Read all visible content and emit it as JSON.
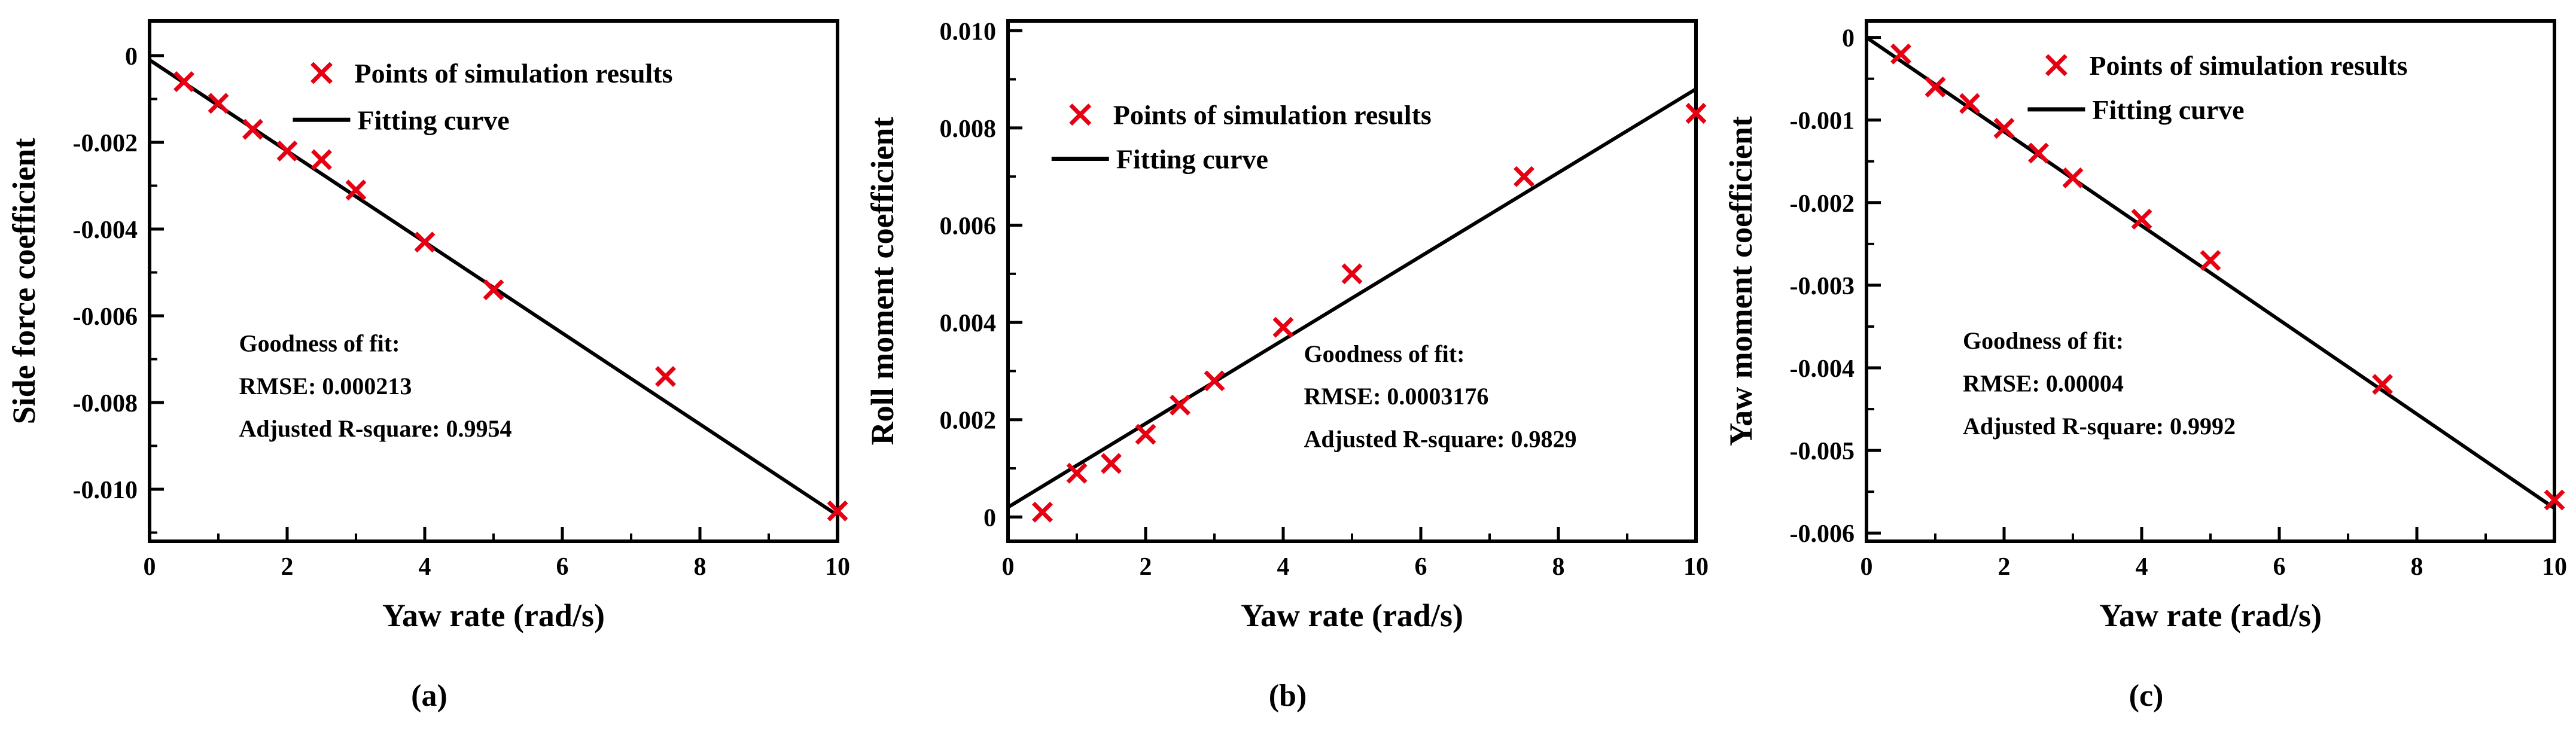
{
  "figure": {
    "background": "#ffffff",
    "marker_color": "#e60012",
    "line_color": "#000000",
    "captions": [
      "(a)",
      "(b)",
      "(c)"
    ]
  },
  "chart_data": [
    {
      "type": "scatter",
      "xlabel": "Yaw rate (rad/s)",
      "ylabel": "Side force coefficient",
      "xlim": [
        0,
        10
      ],
      "ylim": [
        -0.0112,
        0.0008
      ],
      "xticks": [
        0,
        2,
        4,
        6,
        8,
        10
      ],
      "xtick_labels": [
        "0",
        "2",
        "4",
        "6",
        "8",
        "10"
      ],
      "xminor": [
        1,
        3,
        5,
        7,
        9
      ],
      "yticks": [
        0,
        -0.002,
        -0.004,
        -0.006,
        -0.008,
        -0.01
      ],
      "ytick_labels": [
        "0",
        "-0.002",
        "-0.004",
        "-0.006",
        "-0.008",
        "-0.010"
      ],
      "yminor": [
        -0.001,
        -0.003,
        -0.005,
        -0.007,
        -0.009,
        -0.011
      ],
      "grid": false,
      "series": [
        {
          "name": "Points of simulation results",
          "kind": "scatter",
          "marker": "x",
          "color": "#e60012",
          "x": [
            0.5,
            1,
            1.5,
            2,
            2.5,
            3,
            4,
            5,
            7.5,
            10
          ],
          "y": [
            -0.0006,
            -0.0011,
            -0.0017,
            -0.0022,
            -0.0024,
            -0.0031,
            -0.0043,
            -0.0054,
            -0.0074,
            -0.0105
          ]
        },
        {
          "name": "Fitting curve",
          "kind": "line",
          "color": "#000000",
          "x": [
            0,
            10
          ],
          "y": [
            -0.0001,
            -0.0106
          ]
        }
      ],
      "legend": {
        "x": 0.25,
        "y": 0.1,
        "dy": 0.09
      },
      "annotation": {
        "x": 0.13,
        "y": 0.635,
        "dy": 0.082,
        "lines": [
          "Goodness of fit:",
          "RMSE: 0.000213",
          "Adjusted R-square: 0.9954"
        ]
      }
    },
    {
      "type": "scatter",
      "xlabel": "Yaw rate (rad/s)",
      "ylabel": "Roll moment coefficient",
      "xlim": [
        0,
        10
      ],
      "ylim": [
        -0.0005,
        0.0102
      ],
      "xticks": [
        0,
        2,
        4,
        6,
        8,
        10
      ],
      "xtick_labels": [
        "0",
        "2",
        "4",
        "6",
        "8",
        "10"
      ],
      "xminor": [
        1,
        3,
        5,
        7,
        9
      ],
      "yticks": [
        0,
        0.002,
        0.004,
        0.006,
        0.008,
        0.01
      ],
      "ytick_labels": [
        "0",
        "0.002",
        "0.004",
        "0.006",
        "0.008",
        "0.010"
      ],
      "yminor": [
        0.001,
        0.003,
        0.005,
        0.007,
        0.009
      ],
      "grid": false,
      "series": [
        {
          "name": "Points of simulation results",
          "kind": "scatter",
          "marker": "x",
          "color": "#e60012",
          "x": [
            0.5,
            1,
            1.5,
            2,
            2.5,
            3,
            4,
            5,
            7.5,
            10
          ],
          "y": [
            0.0001,
            0.0009,
            0.0011,
            0.0017,
            0.0023,
            0.0028,
            0.0039,
            0.005,
            0.007,
            0.0083
          ]
        },
        {
          "name": "Fitting curve",
          "kind": "line",
          "color": "#000000",
          "x": [
            0,
            10
          ],
          "y": [
            0.0002,
            0.0088
          ]
        }
      ],
      "legend": {
        "x": 0.105,
        "y": 0.18,
        "dy": 0.085
      },
      "annotation": {
        "x": 0.43,
        "y": 0.655,
        "dy": 0.082,
        "lines": [
          "Goodness of fit:",
          "RMSE: 0.0003176",
          "Adjusted R-square: 0.9829"
        ]
      }
    },
    {
      "type": "scatter",
      "xlabel": "Yaw rate (rad/s)",
      "ylabel": "Yaw moment coefficient",
      "xlim": [
        0,
        10
      ],
      "ylim": [
        -0.0061,
        0.0002
      ],
      "xticks": [
        0,
        2,
        4,
        6,
        8,
        10
      ],
      "xtick_labels": [
        "0",
        "2",
        "4",
        "6",
        "8",
        "10"
      ],
      "xminor": [
        1,
        3,
        5,
        7,
        9
      ],
      "yticks": [
        0,
        -0.001,
        -0.002,
        -0.003,
        -0.004,
        -0.005,
        -0.006
      ],
      "ytick_labels": [
        "0",
        "-0.001",
        "-0.002",
        "-0.003",
        "-0.004",
        "-0.005",
        "-0.006"
      ],
      "yminor": [
        -0.0005,
        -0.0015,
        -0.0025,
        -0.0035,
        -0.0045,
        -0.0055
      ],
      "grid": false,
      "series": [
        {
          "name": "Points of simulation results",
          "kind": "scatter",
          "marker": "x",
          "color": "#e60012",
          "x": [
            0.5,
            1,
            1.5,
            2,
            2.5,
            3,
            4,
            5,
            7.5,
            10
          ],
          "y": [
            -0.0002,
            -0.0006,
            -0.0008,
            -0.0011,
            -0.0014,
            -0.0017,
            -0.0022,
            -0.0027,
            -0.0042,
            -0.0056
          ]
        },
        {
          "name": "Fitting curve",
          "kind": "line",
          "color": "#000000",
          "x": [
            0,
            10
          ],
          "y": [
            0.0,
            -0.0057
          ]
        }
      ],
      "legend": {
        "x": 0.276,
        "y": 0.085,
        "dy": 0.085
      },
      "annotation": {
        "x": 0.14,
        "y": 0.63,
        "dy": 0.082,
        "lines": [
          "Goodness of fit:",
          "RMSE: 0.00004",
          "Adjusted R-square: 0.9992"
        ]
      }
    }
  ]
}
